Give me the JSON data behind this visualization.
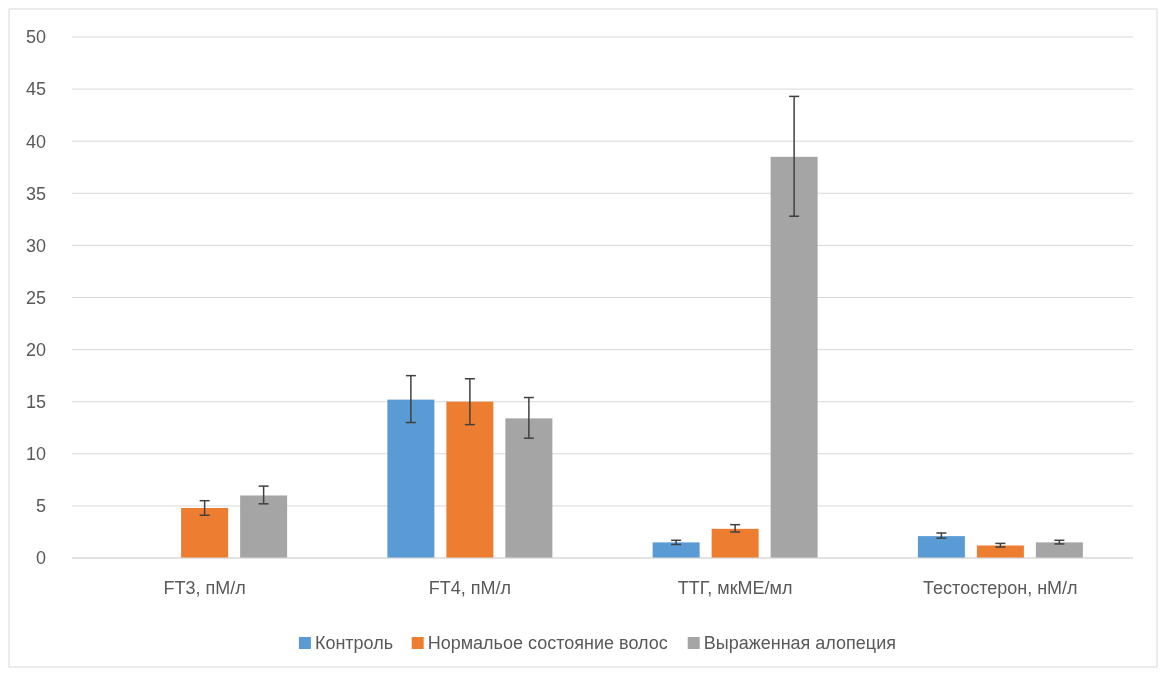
{
  "chart_data": {
    "type": "bar",
    "categories": [
      "FT3, пМ/л",
      "FT4, пМ/л",
      "ТТГ, мкМЕ/мл",
      "Тестостерон, нМ/л"
    ],
    "series": [
      {
        "name": "Контроль",
        "color": "#5b9bd5",
        "values": [
          null,
          15.2,
          1.5,
          2.1
        ],
        "errors": [
          null,
          [
            13.0,
            17.5
          ],
          [
            1.3,
            1.7
          ],
          [
            1.9,
            2.4
          ]
        ]
      },
      {
        "name": "Нормальое состояние волос",
        "color": "#ed7d31",
        "values": [
          4.8,
          15.0,
          2.8,
          1.2
        ],
        "errors": [
          [
            4.1,
            5.5
          ],
          [
            12.8,
            17.2
          ],
          [
            2.5,
            3.2
          ],
          [
            1.05,
            1.4
          ]
        ]
      },
      {
        "name": "Выраженная алопеция",
        "color": "#a5a5a5",
        "values": [
          6.0,
          13.4,
          38.5,
          1.5
        ],
        "errors": [
          [
            5.2,
            6.9
          ],
          [
            11.5,
            15.4
          ],
          [
            32.8,
            44.3
          ],
          [
            1.35,
            1.7
          ]
        ]
      }
    ],
    "ylim": [
      0,
      50
    ],
    "yticks": [
      0,
      5,
      10,
      15,
      20,
      25,
      30,
      35,
      40,
      45,
      50
    ],
    "grid": "y",
    "legend": "bottom"
  }
}
